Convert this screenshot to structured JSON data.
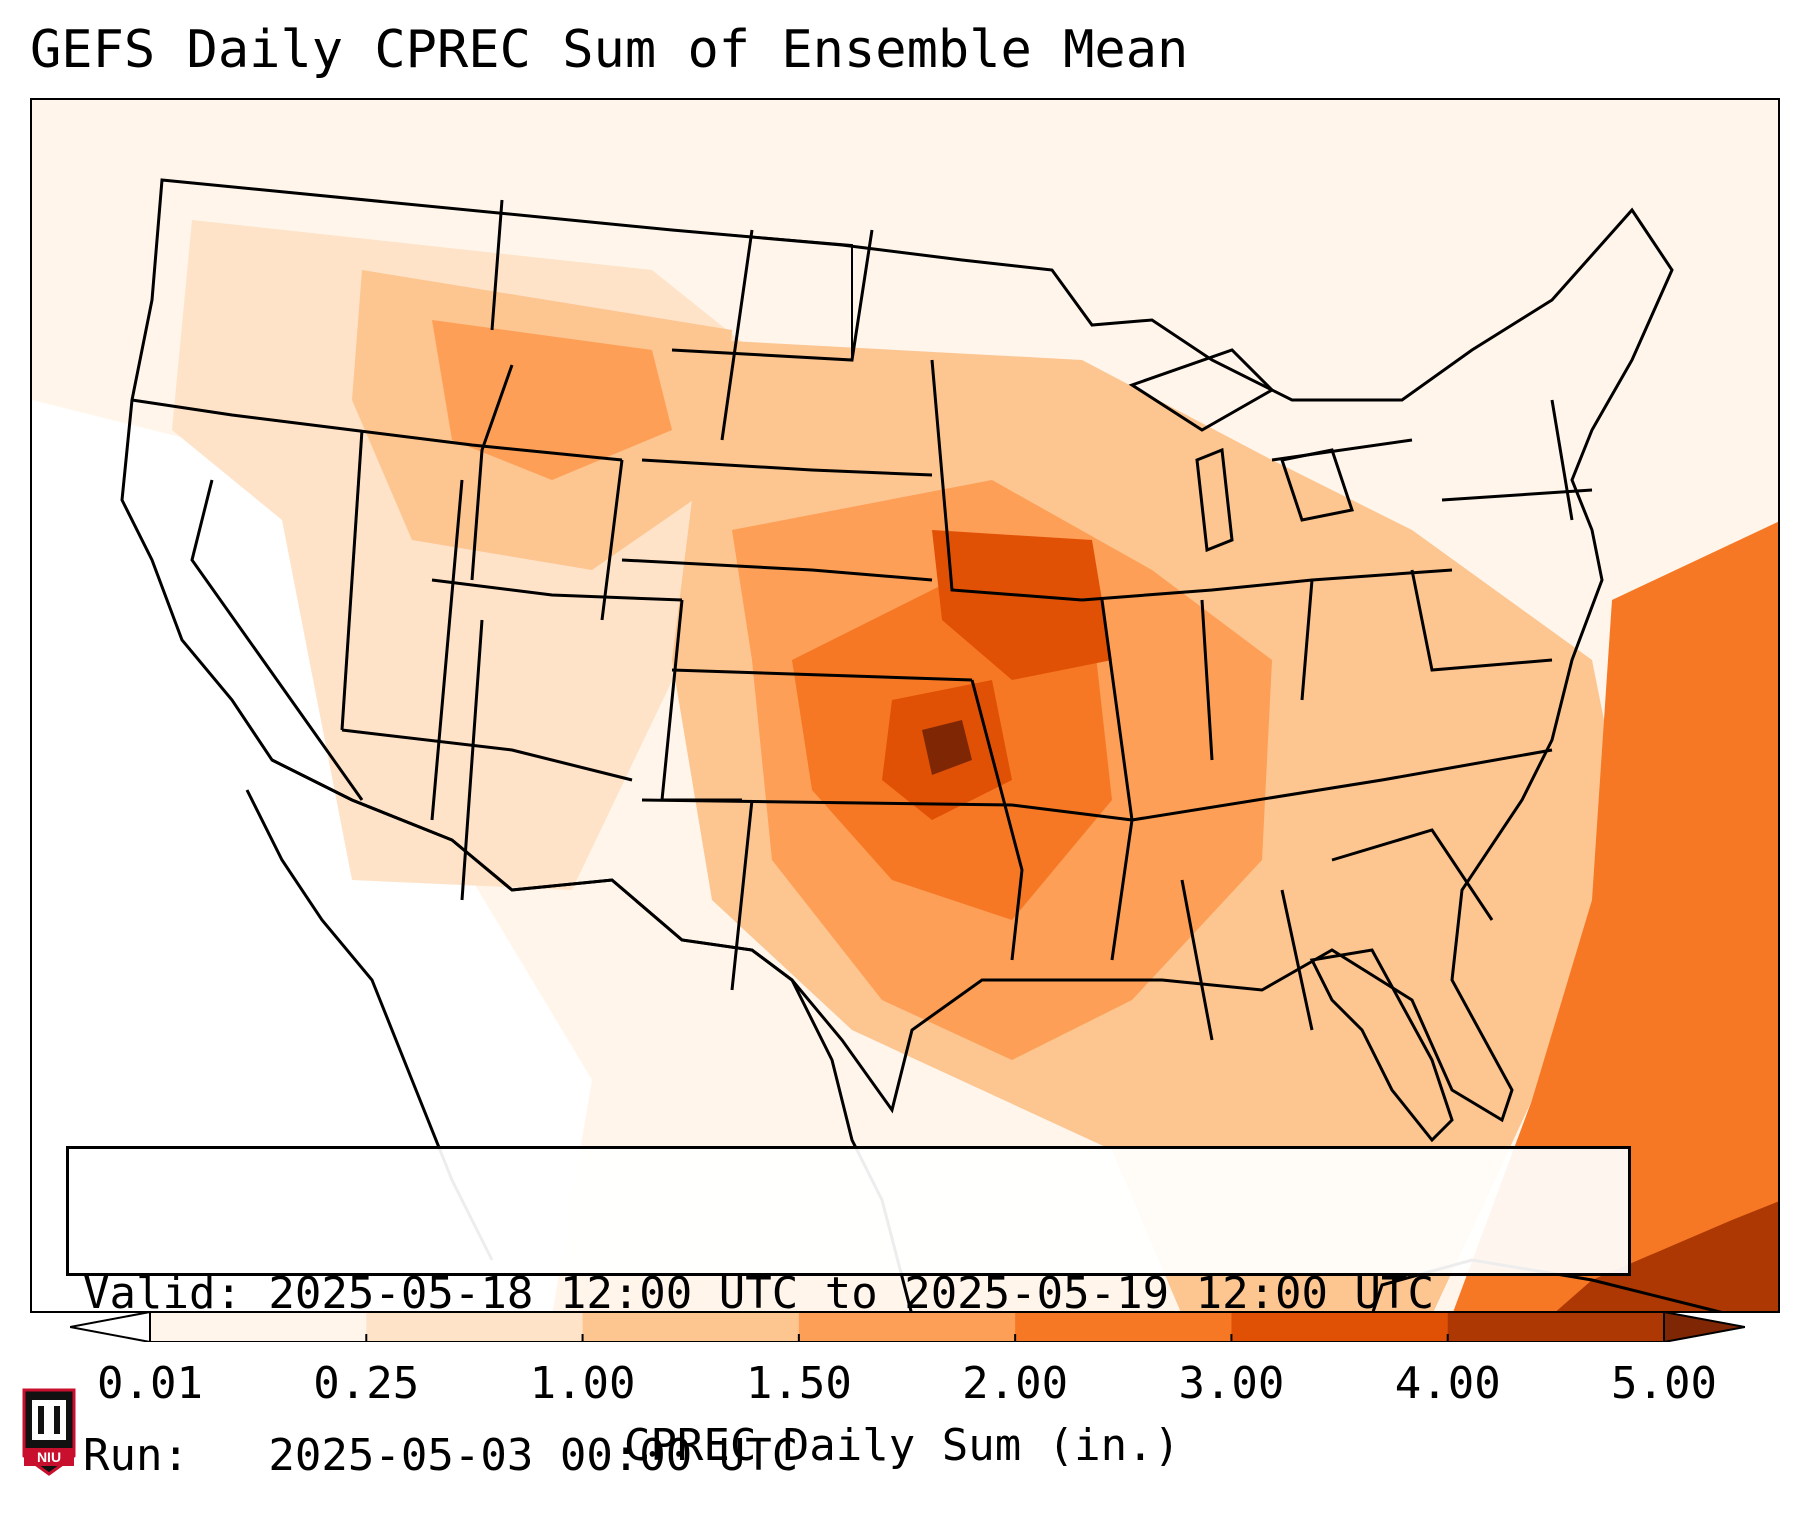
{
  "title": "GEFS Daily CPREC Sum of Ensemble Mean",
  "info": {
    "valid_line": "Valid: 2025-05-18 12:00 UTC to 2025-05-19 12:00 UTC",
    "run_line": "Run:   2025-05-03 00:00 UTC"
  },
  "colorbar": {
    "label": "CPREC Daily Sum (in.)",
    "ticks": [
      "0.01",
      "0.25",
      "1.00",
      "1.50",
      "2.00",
      "3.00",
      "4.00",
      "5.00"
    ],
    "colors": [
      "#fff5eb",
      "#fee3c8",
      "#fdc590",
      "#fd9f56",
      "#f67824",
      "#e05106",
      "#ad3803"
    ],
    "under_color": "#ffffff",
    "over_color": "#7f2704"
  },
  "logo": {
    "text": "NIU",
    "color": "#c8102e"
  }
}
